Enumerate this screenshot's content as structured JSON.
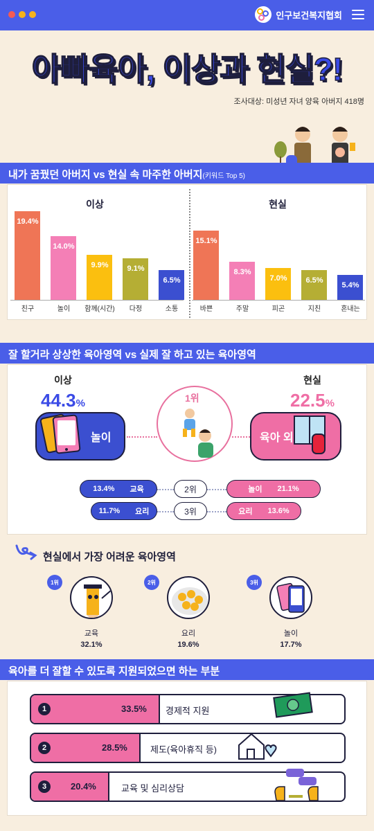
{
  "header": {
    "org_name": "인구보건복지협회"
  },
  "title": "아빠육아, 이상과 현실?!",
  "survey_note": "조사대상: 미성년 자녀 양육 아버지 418명",
  "section1": {
    "title": "내가 꿈꿨던 아버지 vs 현실 속 마주한 아버지",
    "title_suffix": "(키워드 Top 5)",
    "ideal_label": "이상",
    "real_label": "현실",
    "ideal_bars": [
      {
        "label": "친구",
        "value": 19.4,
        "text": "19.4%",
        "color": "#ef7556"
      },
      {
        "label": "놀이",
        "value": 14.0,
        "text": "14.0%",
        "color": "#f47fb6"
      },
      {
        "label": "함께(시간)",
        "value": 9.9,
        "text": "9.9%",
        "color": "#fbbf0f"
      },
      {
        "label": "다정",
        "value": 9.1,
        "text": "9.1%",
        "color": "#b5ae34"
      },
      {
        "label": "소통",
        "value": 6.5,
        "text": "6.5%",
        "color": "#3b4fd0"
      }
    ],
    "real_bars": [
      {
        "label": "바쁜",
        "value": 15.1,
        "text": "15.1%",
        "color": "#ef7556"
      },
      {
        "label": "주말",
        "value": 8.3,
        "text": "8.3%",
        "color": "#f47fb6"
      },
      {
        "label": "피곤",
        "value": 7.0,
        "text": "7.0%",
        "color": "#fbbf0f"
      },
      {
        "label": "지친",
        "value": 6.5,
        "text": "6.5%",
        "color": "#b5ae34"
      },
      {
        "label": "혼내는",
        "value": 5.4,
        "text": "5.4%",
        "color": "#3b4fd0"
      }
    ]
  },
  "section2": {
    "title": "잘 할거라 상상한 육아영역 vs 실제 잘 하고 있는 육아영역",
    "ideal_label": "이상",
    "real_label": "현실",
    "ideal_pct": "44.3",
    "real_pct": "22.5",
    "pct_unit": "%",
    "ideal_area": "놀이",
    "real_area": "육아 외",
    "rank1": "1위",
    "rows": [
      {
        "left_pct": "13.4%",
        "left_area": "교육",
        "rank": "2위",
        "right_area": "놀이",
        "right_pct": "21.1%"
      },
      {
        "left_pct": "11.7%",
        "left_area": "요리",
        "rank": "3위",
        "right_area": "요리",
        "right_pct": "13.6%"
      }
    ]
  },
  "section3": {
    "title": "현실에서 가장 어려운 육아영역",
    "items": [
      {
        "rank": "1위",
        "label": "교육",
        "pct": "32.1%"
      },
      {
        "rank": "2위",
        "label": "요리",
        "pct": "19.6%"
      },
      {
        "rank": "3위",
        "label": "놀이",
        "pct": "17.7%"
      }
    ]
  },
  "section4": {
    "title": "육아를 더 잘할 수 있도록 지원되었으면 하는 부분",
    "items": [
      {
        "num": "1",
        "pct": "33.5%",
        "value": 33.5,
        "label": "경제적 지원"
      },
      {
        "num": "2",
        "pct": "28.5%",
        "value": 28.5,
        "label": "제도(육아휴직 등)"
      },
      {
        "num": "3",
        "pct": "20.4%",
        "value": 20.4,
        "label": "교육 및 심리상담"
      }
    ]
  },
  "colors": {
    "brand_blue": "#4a5ee8",
    "pink": "#ef6ea5",
    "navy": "#1e1e3c"
  }
}
